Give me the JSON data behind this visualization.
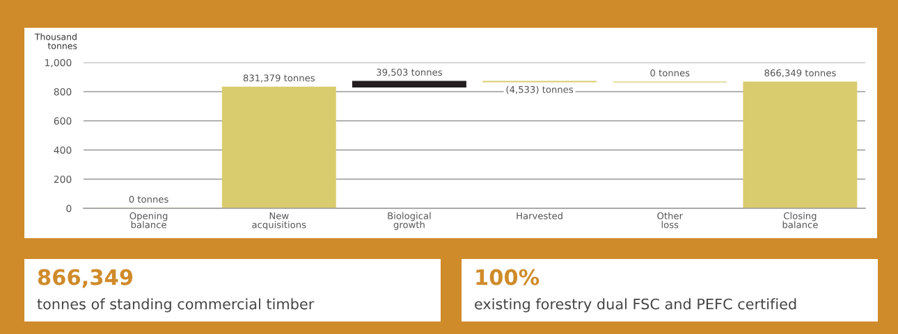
{
  "chart_data": [
    {
      "type": "bar",
      "ylabel": "Thousand\ntonnes",
      "categories": [
        "Opening\nbalance",
        "New\nacquisitions",
        "Biological\ngrowth",
        "Harvested",
        "Other\nloss",
        "Closing\nbalance"
      ],
      "values": [
        0,
        831.4,
        39.5,
        -4.5,
        0,
        866.3
      ],
      "base": [
        0,
        0,
        831.4,
        870.9,
        866.3,
        0
      ],
      "colors": [
        "#d9cc6e",
        "#d9cc6e",
        "#231f20",
        "#d9cc6e",
        "#d9cc6e",
        "#d9cc6e"
      ],
      "annotations": [
        {
          "text": "0 tonnes",
          "x": "Opening\nbalance",
          "y": 0
        },
        {
          "text": "831,379 tonnes",
          "x": "New\nacquisitions",
          "y": 831.4
        },
        {
          "text": "39,503 tonnes",
          "x": "Biological\ngrowth",
          "y": 870.9
        },
        {
          "text": "(4,533) tonnes",
          "x": "Harvested",
          "y": 866.3
        },
        {
          "text": "0 tonnes",
          "x": "Other\nloss",
          "y": 866.3
        },
        {
          "text": "866,349 tonnes",
          "x": "Closing\nbalance",
          "y": 866.3
        }
      ],
      "ylim": [
        0,
        1000
      ],
      "yticks": [
        0,
        200,
        400,
        600,
        800,
        {
          "value": 1000,
          "label": "1,000"
        }
      ],
      "grid": "y"
    },
    {
      "type": "other",
      "title": "866,349",
      "subtitle": "tonnes of standing commercial timber"
    },
    {
      "type": "other",
      "title": "100%",
      "subtitle": "existing forestry dual FSC and PEFC certified"
    }
  ]
}
